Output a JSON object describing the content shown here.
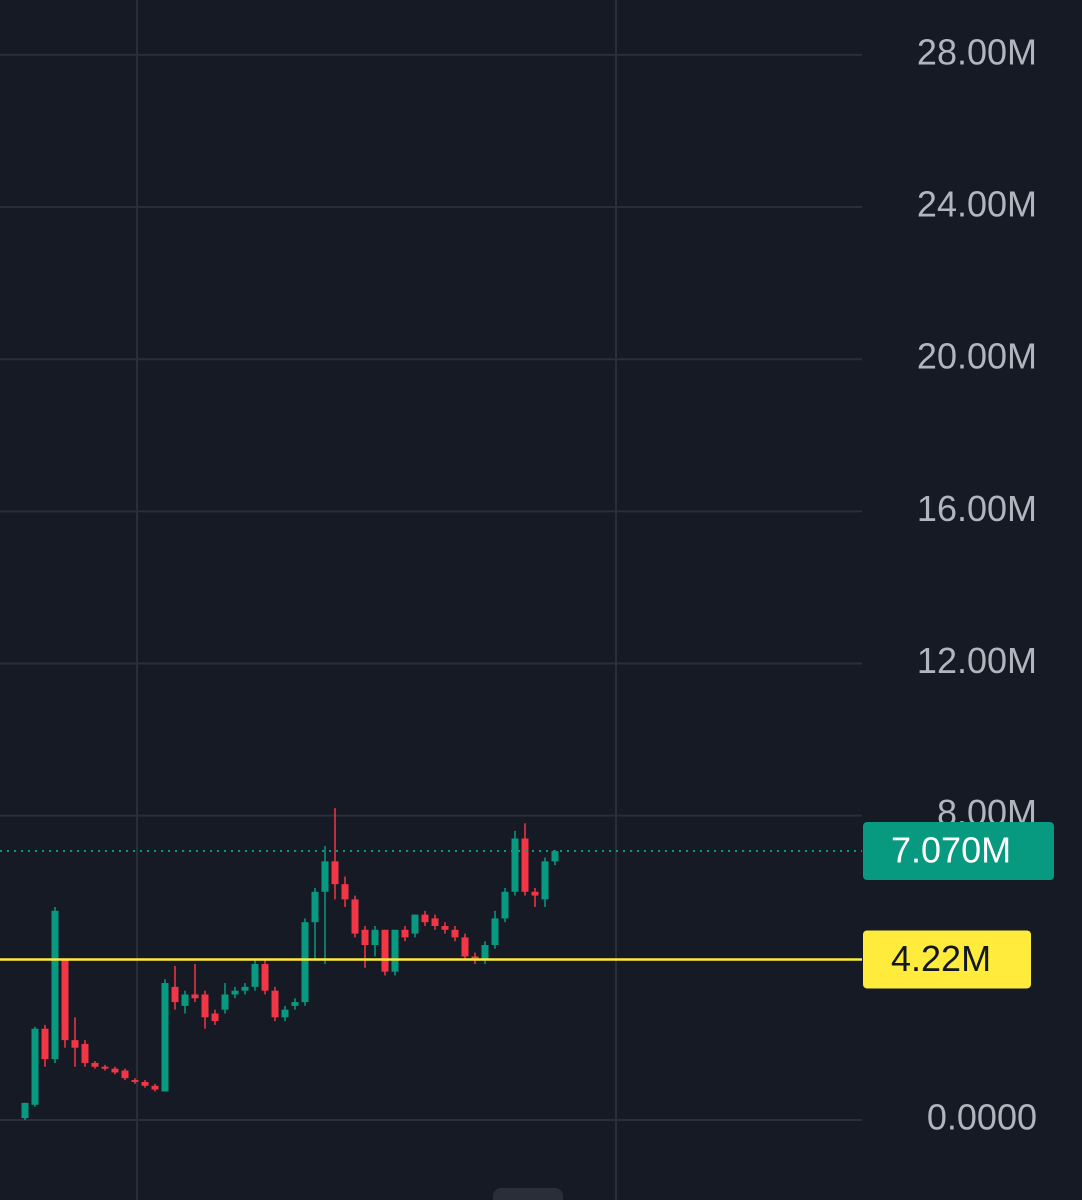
{
  "chart_data": {
    "type": "candlestick",
    "up_color": "#089981",
    "down_color": "#f23645",
    "grid": true,
    "ylim": [
      -2103000,
      29443000
    ],
    "yticks": [
      {
        "value": 0,
        "label": "0.0000"
      },
      {
        "value": 8000000,
        "label": "8.00M"
      },
      {
        "value": 12000000,
        "label": "12.00M"
      },
      {
        "value": 16000000,
        "label": "16.00M"
      },
      {
        "value": 20000000,
        "label": "20.00M"
      },
      {
        "value": 24000000,
        "label": "24.00M"
      },
      {
        "value": 28000000,
        "label": "28.00M"
      }
    ],
    "open": [
      50000,
      400000,
      2400000,
      1600000,
      4200000,
      2100000,
      2000000,
      1500000,
      1400000,
      1350000,
      1300000,
      1050000,
      1000000,
      900000,
      750000,
      3500000,
      3000000,
      3300000,
      3300000,
      2800000,
      2900000,
      3300000,
      3400000,
      3500000,
      4100000,
      3400000,
      2700000,
      3000000,
      3100000,
      5200000,
      6000000,
      6800000,
      6200000,
      5800000,
      5000000,
      4600000,
      5000000,
      3900000,
      5000000,
      4900000,
      5400000,
      5300000,
      5100000,
      5000000,
      4800000,
      4300000,
      4200000,
      4600000,
      5300000,
      6000000,
      7400000,
      6000000,
      5800000,
      6800000
    ],
    "high": [
      450000,
      2450000,
      2500000,
      5600000,
      4250000,
      2700000,
      2100000,
      1550000,
      1450000,
      1400000,
      1350000,
      1100000,
      1050000,
      950000,
      3700000,
      4050000,
      3400000,
      4100000,
      3400000,
      2900000,
      3600000,
      3500000,
      3600000,
      4200000,
      4200000,
      3500000,
      3000000,
      3200000,
      5300000,
      6100000,
      7200000,
      8200000,
      6400000,
      5900000,
      5100000,
      5100000,
      5000000,
      5000000,
      5100000,
      5400000,
      5500000,
      5400000,
      5200000,
      5100000,
      4900000,
      4400000,
      4700000,
      5500000,
      6100000,
      7600000,
      7800000,
      6100000,
      6900000,
      7100000
    ],
    "low": [
      0,
      350000,
      1400000,
      1500000,
      1900000,
      1400000,
      1400000,
      1350000,
      1300000,
      1200000,
      1050000,
      950000,
      850000,
      750000,
      750000,
      2900000,
      2800000,
      3100000,
      2400000,
      2500000,
      2800000,
      3200000,
      3300000,
      3400000,
      3300000,
      2600000,
      2600000,
      2900000,
      3000000,
      4200000,
      4100000,
      5800000,
      5600000,
      4800000,
      4000000,
      4300000,
      3800000,
      3800000,
      4700000,
      4800000,
      5100000,
      5000000,
      4900000,
      4700000,
      4200000,
      4100000,
      4100000,
      4500000,
      5200000,
      5900000,
      5900000,
      5600000,
      5600000,
      6700000
    ],
    "close": [
      450000,
      2400000,
      1600000,
      5500000,
      2100000,
      1900000,
      1500000,
      1400000,
      1350000,
      1250000,
      1100000,
      1000000,
      900000,
      800000,
      3600000,
      3100000,
      3300000,
      3200000,
      2700000,
      2600000,
      3300000,
      3400000,
      3500000,
      4100000,
      3400000,
      2700000,
      2900000,
      3100000,
      5200000,
      6000000,
      6800000,
      6200000,
      5800000,
      4900000,
      4600000,
      5000000,
      3900000,
      5000000,
      4800000,
      5400000,
      5200000,
      5100000,
      5000000,
      4800000,
      4300000,
      4200000,
      4600000,
      5300000,
      6000000,
      7400000,
      6000000,
      5900000,
      6800000,
      7070000
    ],
    "last_price": {
      "value": 7070000,
      "label": "7.070M",
      "color": "#089981"
    },
    "hline": {
      "value": 4220000,
      "label": "4.22M",
      "color": "#ffeb3b"
    }
  }
}
